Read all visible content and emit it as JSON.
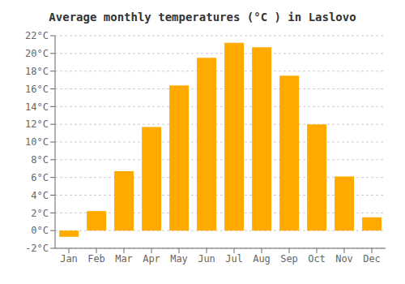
{
  "chart_data": {
    "type": "bar",
    "title": "Average monthly temperatures (°C ) in Laslovo",
    "categories": [
      "Jan",
      "Feb",
      "Mar",
      "Apr",
      "May",
      "Jun",
      "Jul",
      "Aug",
      "Sep",
      "Oct",
      "Nov",
      "Dec"
    ],
    "values": [
      -0.7,
      2.2,
      6.7,
      11.7,
      16.4,
      19.5,
      21.2,
      20.7,
      17.5,
      12.0,
      6.1,
      1.5
    ],
    "color": "#FFAA00",
    "ylim": [
      -2,
      22
    ],
    "yticks": [
      {
        "value": -2,
        "label": "-2°C"
      },
      {
        "value": 0,
        "label": "0°C"
      },
      {
        "value": 2,
        "label": "2°C"
      },
      {
        "value": 4,
        "label": "4°C"
      },
      {
        "value": 6,
        "label": "6°C"
      },
      {
        "value": 8,
        "label": "8°C"
      },
      {
        "value": 10,
        "label": "10°C"
      },
      {
        "value": 12,
        "label": "12°C"
      },
      {
        "value": 14,
        "label": "14°C"
      },
      {
        "value": 16,
        "label": "16°C"
      },
      {
        "value": 18,
        "label": "18°C"
      },
      {
        "value": 20,
        "label": "20°C"
      },
      {
        "value": 22,
        "label": "22°C"
      }
    ],
    "grid": true
  }
}
